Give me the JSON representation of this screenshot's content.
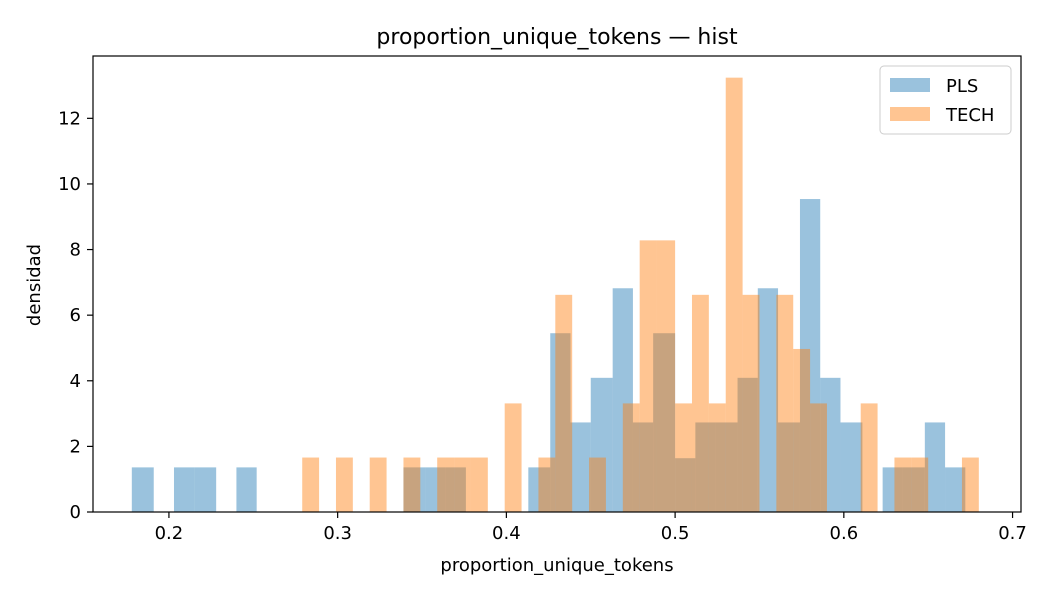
{
  "chart_data": {
    "type": "bar",
    "subtype": "histogram",
    "title": "proportion_unique_tokens — hist",
    "xlabel": "proportion_unique_tokens",
    "ylabel": "densidad",
    "xlim": [
      0.155,
      0.705
    ],
    "ylim": [
      0,
      13.9
    ],
    "xticks": [
      0.2,
      0.3,
      0.4,
      0.5,
      0.6,
      0.7
    ],
    "xtick_labels": [
      "0.2",
      "0.3",
      "0.4",
      "0.5",
      "0.6",
      "0.7"
    ],
    "yticks": [
      0,
      2,
      4,
      6,
      8,
      10,
      12
    ],
    "ytick_labels": [
      "0",
      "2",
      "4",
      "6",
      "8",
      "10",
      "12"
    ],
    "legend_position": "top-right",
    "grid": false,
    "series": [
      {
        "name": "PLS",
        "color": "#1f77b4",
        "opacity": 0.45,
        "bins": [
          {
            "x0": 0.178,
            "x1": 0.191,
            "y": 1.36
          },
          {
            "x0": 0.203,
            "x1": 0.215,
            "y": 1.36
          },
          {
            "x0": 0.215,
            "x1": 0.228,
            "y": 1.36
          },
          {
            "x0": 0.24,
            "x1": 0.252,
            "y": 1.36
          },
          {
            "x0": 0.339,
            "x1": 0.352,
            "y": 1.36
          },
          {
            "x0": 0.352,
            "x1": 0.364,
            "y": 1.36
          },
          {
            "x0": 0.364,
            "x1": 0.376,
            "y": 1.36
          },
          {
            "x0": 0.413,
            "x1": 0.426,
            "y": 1.36
          },
          {
            "x0": 0.426,
            "x1": 0.438,
            "y": 5.45
          },
          {
            "x0": 0.438,
            "x1": 0.45,
            "y": 2.73
          },
          {
            "x0": 0.45,
            "x1": 0.463,
            "y": 4.09
          },
          {
            "x0": 0.463,
            "x1": 0.475,
            "y": 6.82
          },
          {
            "x0": 0.475,
            "x1": 0.487,
            "y": 2.73
          },
          {
            "x0": 0.487,
            "x1": 0.5,
            "y": 5.45
          },
          {
            "x0": 0.5,
            "x1": 0.512,
            "y": 1.64
          },
          {
            "x0": 0.512,
            "x1": 0.524,
            "y": 2.73
          },
          {
            "x0": 0.524,
            "x1": 0.537,
            "y": 2.73
          },
          {
            "x0": 0.537,
            "x1": 0.549,
            "y": 4.09
          },
          {
            "x0": 0.549,
            "x1": 0.561,
            "y": 6.82
          },
          {
            "x0": 0.561,
            "x1": 0.574,
            "y": 2.73
          },
          {
            "x0": 0.574,
            "x1": 0.586,
            "y": 9.54
          },
          {
            "x0": 0.586,
            "x1": 0.598,
            "y": 4.09
          },
          {
            "x0": 0.598,
            "x1": 0.611,
            "y": 2.73
          },
          {
            "x0": 0.623,
            "x1": 0.635,
            "y": 1.36
          },
          {
            "x0": 0.635,
            "x1": 0.648,
            "y": 1.36
          },
          {
            "x0": 0.648,
            "x1": 0.66,
            "y": 2.73
          },
          {
            "x0": 0.66,
            "x1": 0.672,
            "y": 1.36
          }
        ]
      },
      {
        "name": "TECH",
        "color": "#ff7f0e",
        "opacity": 0.45,
        "bins": [
          {
            "x0": 0.279,
            "x1": 0.289,
            "y": 1.66
          },
          {
            "x0": 0.299,
            "x1": 0.309,
            "y": 1.66
          },
          {
            "x0": 0.319,
            "x1": 0.329,
            "y": 1.66
          },
          {
            "x0": 0.339,
            "x1": 0.349,
            "y": 1.66
          },
          {
            "x0": 0.359,
            "x1": 0.369,
            "y": 1.66
          },
          {
            "x0": 0.369,
            "x1": 0.379,
            "y": 1.66
          },
          {
            "x0": 0.379,
            "x1": 0.389,
            "y": 1.66
          },
          {
            "x0": 0.399,
            "x1": 0.409,
            "y": 3.31
          },
          {
            "x0": 0.419,
            "x1": 0.429,
            "y": 1.66
          },
          {
            "x0": 0.429,
            "x1": 0.439,
            "y": 6.62
          },
          {
            "x0": 0.449,
            "x1": 0.459,
            "y": 1.66
          },
          {
            "x0": 0.469,
            "x1": 0.479,
            "y": 3.31
          },
          {
            "x0": 0.479,
            "x1": 0.489,
            "y": 8.28
          },
          {
            "x0": 0.489,
            "x1": 0.5,
            "y": 8.28
          },
          {
            "x0": 0.5,
            "x1": 0.51,
            "y": 3.31
          },
          {
            "x0": 0.51,
            "x1": 0.52,
            "y": 6.62
          },
          {
            "x0": 0.52,
            "x1": 0.53,
            "y": 3.31
          },
          {
            "x0": 0.53,
            "x1": 0.54,
            "y": 13.24
          },
          {
            "x0": 0.54,
            "x1": 0.55,
            "y": 6.62
          },
          {
            "x0": 0.56,
            "x1": 0.57,
            "y": 6.62
          },
          {
            "x0": 0.57,
            "x1": 0.58,
            "y": 4.97
          },
          {
            "x0": 0.58,
            "x1": 0.59,
            "y": 3.31
          },
          {
            "x0": 0.61,
            "x1": 0.62,
            "y": 3.31
          },
          {
            "x0": 0.63,
            "x1": 0.64,
            "y": 1.66
          },
          {
            "x0": 0.64,
            "x1": 0.65,
            "y": 1.66
          },
          {
            "x0": 0.67,
            "x1": 0.68,
            "y": 1.66
          }
        ]
      }
    ]
  }
}
